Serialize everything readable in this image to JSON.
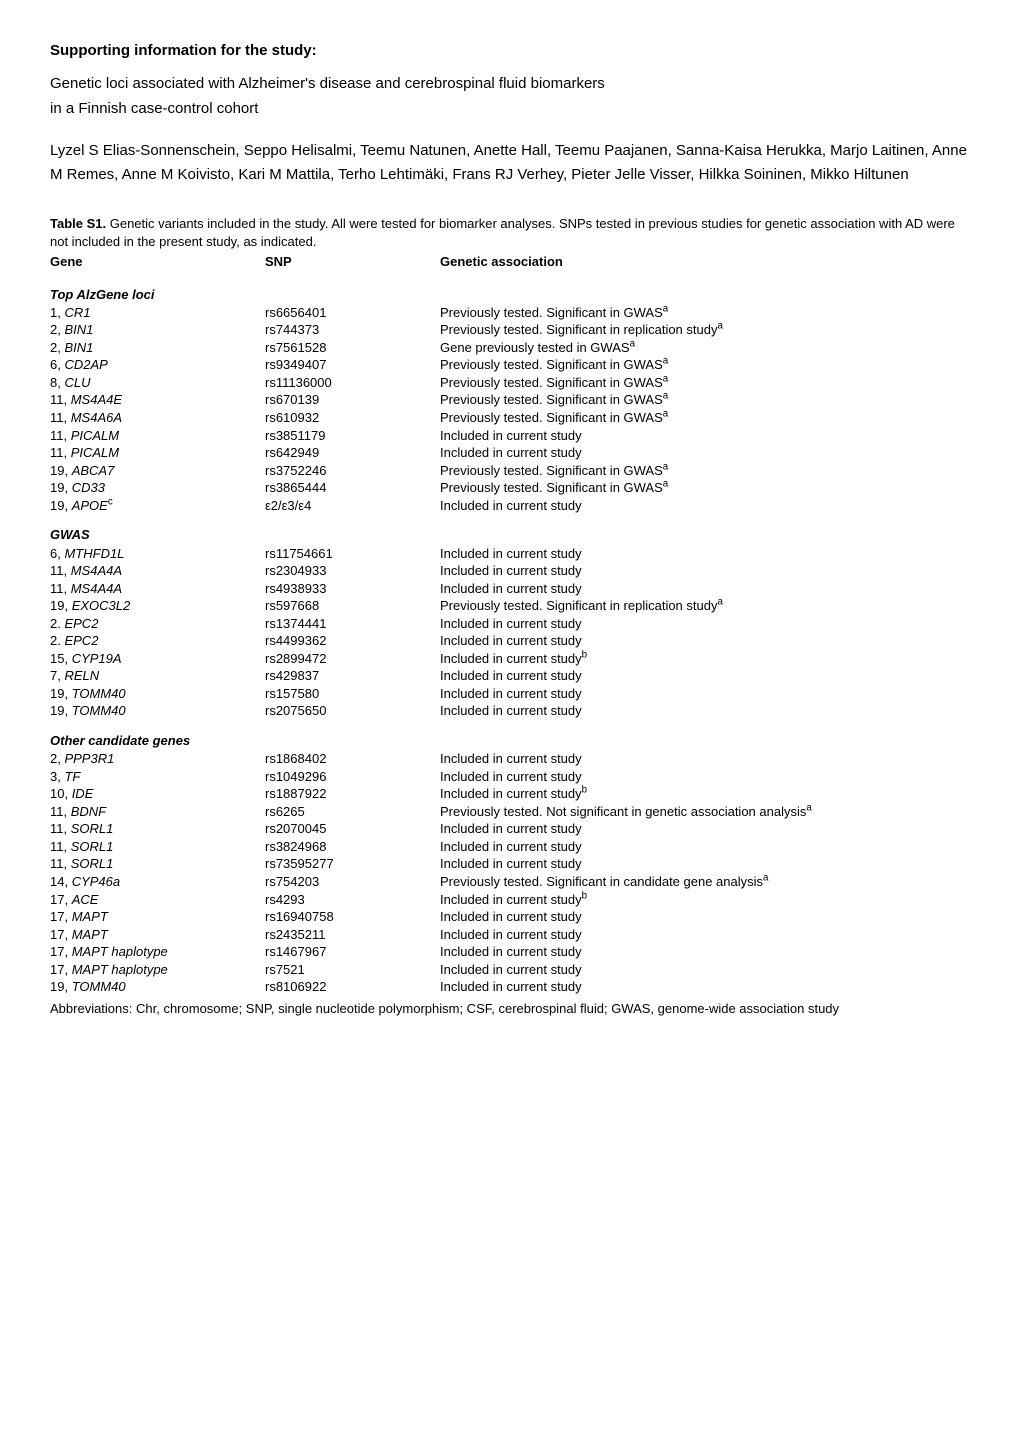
{
  "strings": {
    "title": "Supporting information for the study:",
    "subtitle1": "Genetic loci associated with Alzheimer's disease and cerebrospinal fluid biomarkers",
    "subtitle2": "in a Finnish case-control cohort",
    "authors": "Lyzel S Elias-Sonnenschein, Seppo Helisalmi, Teemu Natunen, Anette Hall, Teemu Paajanen, Sanna-Kaisa Herukka, Marjo Laitinen, Anne M Remes, Anne M Koivisto, Kari M Mattila, Terho Lehtimäki, Frans RJ Verhey, Pieter Jelle Visser, Hilkka Soininen, Mikko Hiltunen",
    "table_label": "Table S1.",
    "table_caption": " Genetic variants included in the study. All were tested for biomarker analyses. SNPs tested in previous studies for genetic association with AD were not included in the present study, as indicated.",
    "col_gene": "Gene",
    "col_snp": "SNP",
    "col_assoc": "Genetic association",
    "section1": "Top AlzGene loci",
    "section2": "GWAS",
    "section3": "Other candidate genes",
    "abbrev": "Abbreviations: Chr, chromosome; SNP, single nucleotide polymorphism; CSF, cerebrospinal fluid; GWAS, genome-wide association study",
    "prev_gwas": "Previously tested. Significant in GWAS",
    "prev_repl": "Previously tested. Significant in replication study",
    "gene_prev_gwas": "Gene previously tested in GWAS",
    "included": "Included in current study",
    "prev_not_sig": "Previously tested. Not significant in genetic association analysis",
    "prev_cand": "Previously tested. Significant in candidate gene analysis",
    "sup_a": "a",
    "sup_b": "b",
    "sup_c": "c"
  },
  "top_alzgene": [
    {
      "chr": "1, ",
      "gene": "CR1",
      "snp": "rs6656401",
      "assoc": "prev_gwas",
      "sup": "a"
    },
    {
      "chr": "2, ",
      "gene": "BIN1",
      "snp": "rs744373",
      "assoc": "prev_repl",
      "sup": "a"
    },
    {
      "chr": "2, ",
      "gene": "BIN1",
      "snp": "rs7561528",
      "assoc": "gene_prev_gwas",
      "sup": "a"
    },
    {
      "chr": "6, ",
      "gene": "CD2AP",
      "snp": "rs9349407",
      "assoc": "prev_gwas",
      "sup": "a"
    },
    {
      "chr": "8, ",
      "gene": "CLU",
      "snp": "rs11136000",
      "assoc": "prev_gwas",
      "sup": "a"
    },
    {
      "chr": "11, ",
      "gene": "MS4A4E",
      "snp": "rs670139",
      "assoc": "prev_gwas",
      "sup": "a"
    },
    {
      "chr": "11, ",
      "gene": "MS4A6A",
      "snp": "rs610932",
      "assoc": "prev_gwas",
      "sup": "a"
    },
    {
      "chr": "11, ",
      "gene": "PICALM",
      "snp": "rs3851179",
      "assoc": "included"
    },
    {
      "chr": "11, ",
      "gene": "PICALM",
      "snp": "rs642949",
      "assoc": "included"
    },
    {
      "chr": "19, ",
      "gene": "ABCA7",
      "snp": "rs3752246",
      "assoc": "prev_gwas",
      "sup": "a"
    },
    {
      "chr": "19, ",
      "gene": "CD33",
      "snp": "rs3865444",
      "assoc": "prev_gwas",
      "sup": "a"
    },
    {
      "chr": "19, ",
      "gene": "APOE",
      "gene_sup": "c",
      "snp": "ε2/ε3/ε4",
      "assoc": "included"
    }
  ],
  "gwas": [
    {
      "chr": "6, ",
      "gene": "MTHFD1L",
      "snp": "rs11754661",
      "assoc": "included"
    },
    {
      "chr": "11, ",
      "gene": "MS4A4A",
      "snp": "rs2304933",
      "assoc": "included"
    },
    {
      "chr": "11, ",
      "gene": "MS4A4A",
      "snp": "rs4938933",
      "assoc": "included"
    },
    {
      "chr": "19, ",
      "gene": "EXOC3L2",
      "snp": "rs597668",
      "assoc": "prev_repl",
      "sup": "a"
    },
    {
      "chr": "2. ",
      "gene": "EPC2",
      "snp": "rs1374441",
      "assoc": "included"
    },
    {
      "chr": "2. ",
      "gene": "EPC2",
      "snp": "rs4499362",
      "assoc": "included"
    },
    {
      "chr": "15, ",
      "gene": "CYP19A",
      "snp": "rs2899472",
      "assoc": "included",
      "sup": "b"
    },
    {
      "chr": "7, ",
      "gene": "RELN",
      "snp": "rs429837",
      "assoc": "included"
    },
    {
      "chr": "19, ",
      "gene": "TOMM40",
      "snp": "rs157580",
      "assoc": "included"
    },
    {
      "chr": "19, ",
      "gene": "TOMM40",
      "snp": "rs2075650",
      "assoc": "included"
    }
  ],
  "other": [
    {
      "chr": "2, ",
      "gene": "PPP3R1",
      "snp": "rs1868402",
      "assoc": "included"
    },
    {
      "chr": "3, ",
      "gene": "TF",
      "snp": "rs1049296",
      "assoc": "included"
    },
    {
      "chr": "10, ",
      "gene": "IDE",
      "snp": "rs1887922",
      "assoc": "included",
      "sup": "b"
    },
    {
      "chr": "11, ",
      "gene": "BDNF",
      "snp": "rs6265",
      "assoc": "prev_not_sig",
      "sup": "a"
    },
    {
      "chr": "11, ",
      "gene": "SORL1",
      "snp": "rs2070045",
      "assoc": "included"
    },
    {
      "chr": "11, ",
      "gene": "SORL1",
      "snp": "rs3824968",
      "assoc": "included"
    },
    {
      "chr": "11, ",
      "gene": "SORL1",
      "snp": "rs73595277",
      "assoc": "included"
    },
    {
      "chr": "14, ",
      "gene": "CYP46a",
      "snp": "rs754203",
      "assoc": "prev_cand",
      "sup": "a"
    },
    {
      "chr": "17, ",
      "gene": "ACE",
      "snp": "rs4293",
      "assoc": "included",
      "sup": "b"
    },
    {
      "chr": "17, ",
      "gene": "MAPT",
      "snp": "rs16940758",
      "assoc": "included"
    },
    {
      "chr": "17, ",
      "gene": "MAPT",
      "snp": "rs2435211",
      "assoc": "included"
    },
    {
      "chr": "17, ",
      "gene": "MAPT haplotype",
      "snp": "rs1467967",
      "assoc": "included"
    },
    {
      "chr": "17, ",
      "gene": "MAPT haplotype",
      "snp": "rs7521",
      "assoc": "included"
    },
    {
      "chr": "19, ",
      "gene": "TOMM40",
      "snp": "rs8106922",
      "assoc": "included"
    }
  ]
}
